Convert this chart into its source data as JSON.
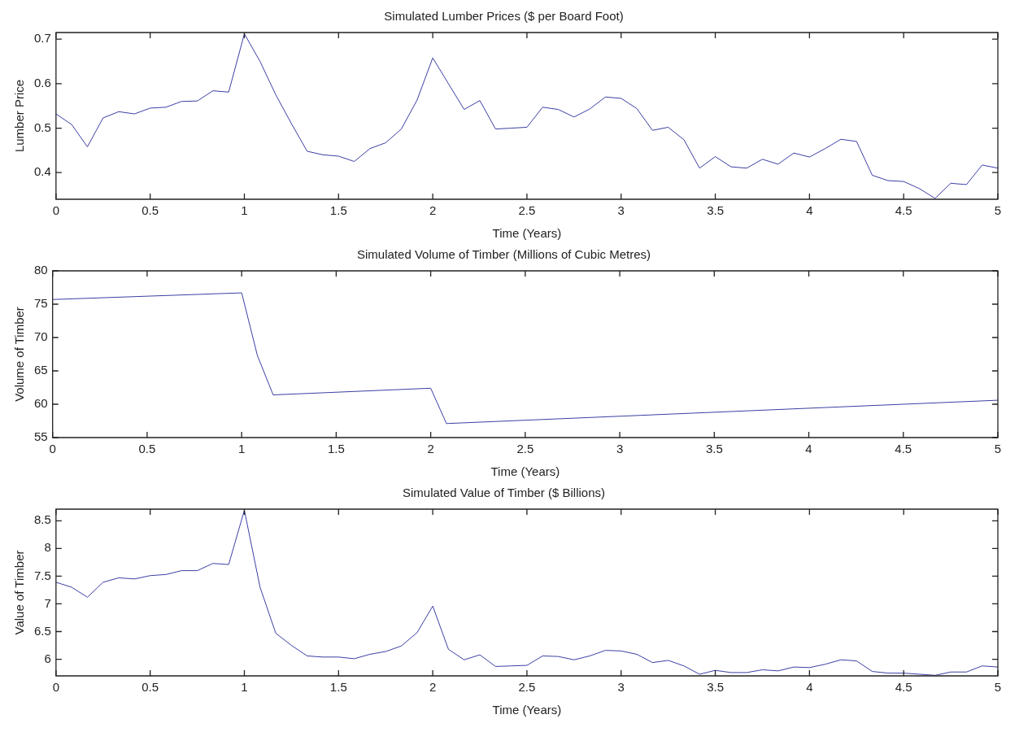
{
  "chart_data": [
    {
      "type": "line",
      "title": "Simulated Lumber Prices ($ per Board Foot)",
      "xlabel": "Time (Years)",
      "ylabel": "Lumber Price",
      "xlim": [
        0,
        5
      ],
      "xticks": [
        0,
        0.5,
        1,
        1.5,
        2,
        2.5,
        3,
        3.5,
        4,
        4.5,
        5
      ],
      "ylim": [
        0.34,
        0.715
      ],
      "yticks": [
        0.4,
        0.5,
        0.6,
        0.7
      ],
      "grid": false,
      "legend": false,
      "x": [
        0,
        0.0833,
        0.1667,
        0.25,
        0.3333,
        0.4167,
        0.5,
        0.5833,
        0.6667,
        0.75,
        0.8333,
        0.9167,
        1,
        1.0833,
        1.1667,
        1.25,
        1.3333,
        1.4167,
        1.5,
        1.5833,
        1.6667,
        1.75,
        1.8333,
        1.9167,
        2,
        2.0833,
        2.1667,
        2.25,
        2.3333,
        2.4167,
        2.5,
        2.5833,
        2.6667,
        2.75,
        2.8333,
        2.9167,
        3,
        3.0833,
        3.1667,
        3.25,
        3.3333,
        3.4167,
        3.5,
        3.5833,
        3.6667,
        3.75,
        3.8333,
        3.9167,
        4,
        4.0833,
        4.1667,
        4.25,
        4.3333,
        4.4167,
        4.5,
        4.5833,
        4.6667,
        4.75,
        4.8333,
        4.9167,
        5
      ],
      "series": [
        {
          "color": "#3b3fa3",
          "values": [
            0.532,
            0.508,
            0.458,
            0.523,
            0.537,
            0.532,
            0.545,
            0.547,
            0.56,
            0.561,
            0.584,
            0.581,
            0.712,
            0.65,
            0.575,
            0.51,
            0.448,
            0.44,
            0.437,
            0.425,
            0.454,
            0.467,
            0.498,
            0.563,
            0.658,
            0.6,
            0.542,
            0.562,
            0.498,
            0.5,
            0.502,
            0.547,
            0.542,
            0.525,
            0.543,
            0.57,
            0.567,
            0.544,
            0.495,
            0.502,
            0.474,
            0.41,
            0.436,
            0.413,
            0.41,
            0.43,
            0.419,
            0.444,
            0.435,
            0.454,
            0.475,
            0.47,
            0.394,
            0.382,
            0.38,
            0.364,
            0.342,
            0.376,
            0.373,
            0.417,
            0.41
          ]
        }
      ]
    },
    {
      "type": "line",
      "title": "Simulated Volume of Timber (Millions of Cubic Metres)",
      "xlabel": "Time (Years)",
      "ylabel": "Volume of Timber",
      "xlim": [
        0,
        5
      ],
      "xticks": [
        0,
        0.5,
        1,
        1.5,
        2,
        2.5,
        3,
        3.5,
        4,
        4.5,
        5
      ],
      "ylim": [
        55,
        80
      ],
      "yticks": [
        55,
        60,
        65,
        70,
        75,
        80
      ],
      "grid": false,
      "legend": false,
      "x": [
        0,
        1,
        1.0833,
        1.1667,
        2,
        2.0833,
        5
      ],
      "series": [
        {
          "color": "#3b3fa3",
          "values": [
            75.7,
            76.7,
            67.3,
            61.4,
            62.4,
            57.1,
            60.6
          ]
        }
      ]
    },
    {
      "type": "line",
      "title": "Simulated Value of Timber ($ Billions)",
      "xlabel": "Time (Years)",
      "ylabel": "Value of Timber",
      "xlim": [
        0,
        5
      ],
      "xticks": [
        0,
        0.5,
        1,
        1.5,
        2,
        2.5,
        3,
        3.5,
        4,
        4.5,
        5
      ],
      "ylim": [
        5.7,
        8.71
      ],
      "yticks": [
        6,
        6.5,
        7,
        7.5,
        8,
        8.5
      ],
      "grid": false,
      "legend": false,
      "x": [
        0,
        0.0833,
        0.1667,
        0.25,
        0.3333,
        0.4167,
        0.5,
        0.5833,
        0.6667,
        0.75,
        0.8333,
        0.9167,
        1,
        1.0833,
        1.1667,
        1.25,
        1.3333,
        1.4167,
        1.5,
        1.5833,
        1.6667,
        1.75,
        1.8333,
        1.9167,
        2,
        2.0833,
        2.1667,
        2.25,
        2.3333,
        2.4167,
        2.5,
        2.5833,
        2.6667,
        2.75,
        2.8333,
        2.9167,
        3,
        3.0833,
        3.1667,
        3.25,
        3.3333,
        3.4167,
        3.5,
        3.5833,
        3.6667,
        3.75,
        3.8333,
        3.9167,
        4,
        4.0833,
        4.1667,
        4.25,
        4.3333,
        4.4167,
        4.5,
        4.5833,
        4.6667,
        4.75,
        4.8333,
        4.9167,
        5
      ],
      "series": [
        {
          "color": "#3b3fa3",
          "values": [
            7.39,
            7.3,
            7.12,
            7.39,
            7.47,
            7.45,
            7.51,
            7.53,
            7.6,
            7.6,
            7.73,
            7.71,
            8.69,
            7.3,
            6.47,
            6.25,
            6.06,
            6.04,
            6.04,
            6.01,
            6.09,
            6.14,
            6.24,
            6.48,
            6.96,
            6.18,
            5.99,
            6.08,
            5.87,
            5.88,
            5.89,
            6.06,
            6.05,
            5.99,
            6.06,
            6.16,
            6.15,
            6.09,
            5.94,
            5.98,
            5.88,
            5.73,
            5.8,
            5.76,
            5.76,
            5.81,
            5.79,
            5.86,
            5.85,
            5.91,
            5.99,
            5.97,
            5.78,
            5.75,
            5.75,
            5.73,
            5.71,
            5.77,
            5.77,
            5.88,
            5.86
          ]
        }
      ]
    }
  ]
}
